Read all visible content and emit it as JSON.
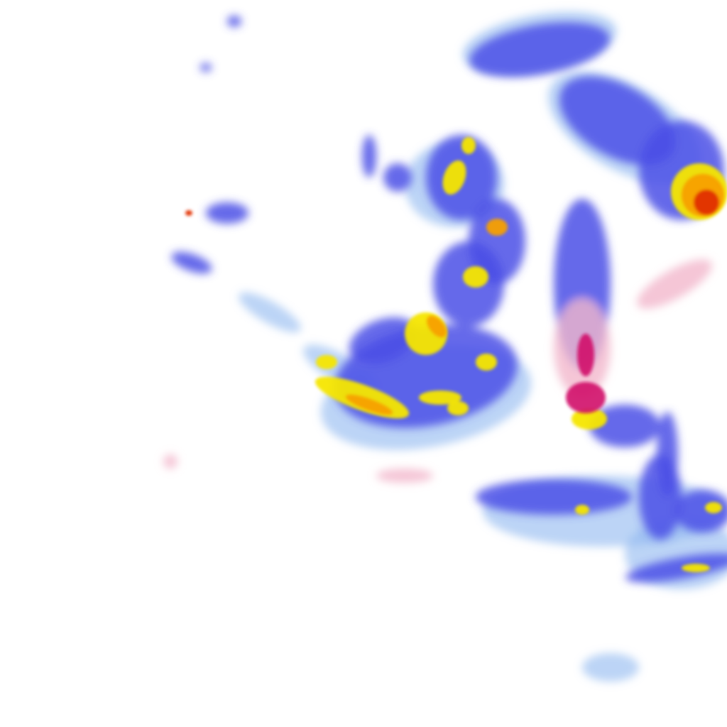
{
  "map": {
    "type": "precipitation radar overlay tile",
    "background": "#ffffff",
    "colors": {
      "very_light": "#bfe0f7",
      "light": "#8fb8f0",
      "moderate": "#4a4fe6",
      "heavy": "#f5e600",
      "very_heavy": "#f7a000",
      "intense": "#e23000",
      "extreme": "#b00020",
      "mixed_light": "#f2b8cc",
      "mixed_heavy": "#d0106a"
    }
  }
}
